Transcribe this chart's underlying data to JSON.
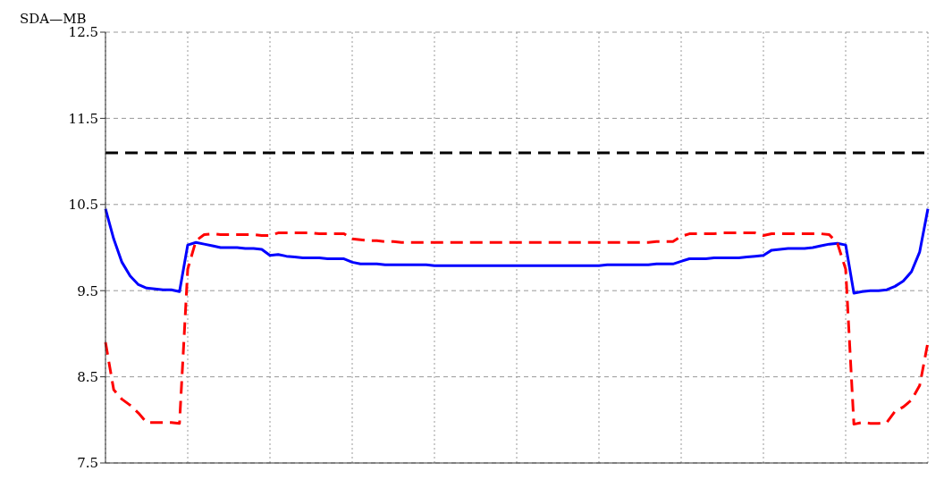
{
  "chart_data": {
    "type": "line",
    "ylabel": "SDA—MB",
    "categories": [
      null,
      null,
      null,
      null,
      null,
      null,
      null,
      null,
      null,
      null,
      null,
      null,
      null,
      null,
      null,
      null,
      null,
      null,
      null,
      null,
      null,
      null,
      null,
      null,
      null,
      null,
      null,
      null,
      null,
      null,
      null,
      null,
      null,
      null,
      null,
      null,
      null,
      null,
      null,
      null,
      null,
      null,
      null,
      null,
      null,
      null,
      null,
      null,
      null,
      null,
      null,
      null,
      null,
      null,
      null,
      null,
      null,
      null,
      null,
      null,
      null,
      null,
      null,
      null,
      null,
      null,
      null,
      null,
      null,
      null,
      null,
      null,
      null,
      null,
      null,
      null,
      null,
      null,
      null,
      null,
      null,
      null,
      null,
      null,
      null,
      null,
      null,
      null,
      null,
      null,
      null,
      null,
      null,
      null,
      null,
      null,
      null,
      null,
      null,
      null,
      null
    ],
    "ylim": [
      7.5,
      12.5
    ],
    "yticks": [
      7.5,
      8.5,
      9.5,
      10.5,
      11.5,
      12.5
    ],
    "grid": true,
    "series": [
      {
        "color": "#0000ff",
        "line_style": "solid",
        "values": [
          10.45,
          10.1,
          9.83,
          9.67,
          9.57,
          9.53,
          9.52,
          9.51,
          9.51,
          9.49,
          10.03,
          10.06,
          10.04,
          10.02,
          10.0,
          10.0,
          10.0,
          9.99,
          9.99,
          9.98,
          9.91,
          9.92,
          9.9,
          9.89,
          9.88,
          9.88,
          9.88,
          9.87,
          9.87,
          9.87,
          9.83,
          9.81,
          9.81,
          9.81,
          9.8,
          9.8,
          9.8,
          9.8,
          9.8,
          9.8,
          9.79,
          9.79,
          9.79,
          9.79,
          9.79,
          9.79,
          9.79,
          9.79,
          9.79,
          9.79,
          9.79,
          9.79,
          9.79,
          9.79,
          9.79,
          9.79,
          9.79,
          9.79,
          9.79,
          9.79,
          9.79,
          9.8,
          9.8,
          9.8,
          9.8,
          9.8,
          9.8,
          9.81,
          9.81,
          9.81,
          9.84,
          9.87,
          9.87,
          9.87,
          9.88,
          9.88,
          9.88,
          9.88,
          9.89,
          9.9,
          9.91,
          9.97,
          9.98,
          9.99,
          9.99,
          9.99,
          10.0,
          10.02,
          10.04,
          10.05,
          10.03,
          9.47,
          9.49,
          9.5,
          9.5,
          9.51,
          9.55,
          9.61,
          9.72,
          9.95,
          10.45
        ]
      },
      {
        "color": "#ff0000",
        "line_style": "dashed",
        "values": [
          8.9,
          8.35,
          8.24,
          8.17,
          8.08,
          7.97,
          7.97,
          7.97,
          7.97,
          7.96,
          9.75,
          10.08,
          10.15,
          10.16,
          10.15,
          10.15,
          10.15,
          10.15,
          10.15,
          10.14,
          10.14,
          10.17,
          10.17,
          10.17,
          10.17,
          10.17,
          10.16,
          10.16,
          10.16,
          10.16,
          10.1,
          10.09,
          10.08,
          10.08,
          10.07,
          10.07,
          10.06,
          10.06,
          10.06,
          10.06,
          10.06,
          10.06,
          10.06,
          10.06,
          10.06,
          10.06,
          10.06,
          10.06,
          10.06,
          10.06,
          10.06,
          10.06,
          10.06,
          10.06,
          10.06,
          10.06,
          10.06,
          10.06,
          10.06,
          10.06,
          10.06,
          10.06,
          10.06,
          10.06,
          10.06,
          10.06,
          10.06,
          10.07,
          10.07,
          10.07,
          10.13,
          10.16,
          10.16,
          10.16,
          10.16,
          10.17,
          10.17,
          10.17,
          10.17,
          10.17,
          10.14,
          10.16,
          10.16,
          10.16,
          10.16,
          10.16,
          10.16,
          10.16,
          10.15,
          10.05,
          9.75,
          7.95,
          7.97,
          7.96,
          7.96,
          7.97,
          8.1,
          8.15,
          8.23,
          8.4,
          8.9
        ]
      }
    ],
    "ref_lines": [
      {
        "axis": "y",
        "value": 11.1,
        "color": "#000000",
        "line_style": "dashed"
      }
    ]
  }
}
